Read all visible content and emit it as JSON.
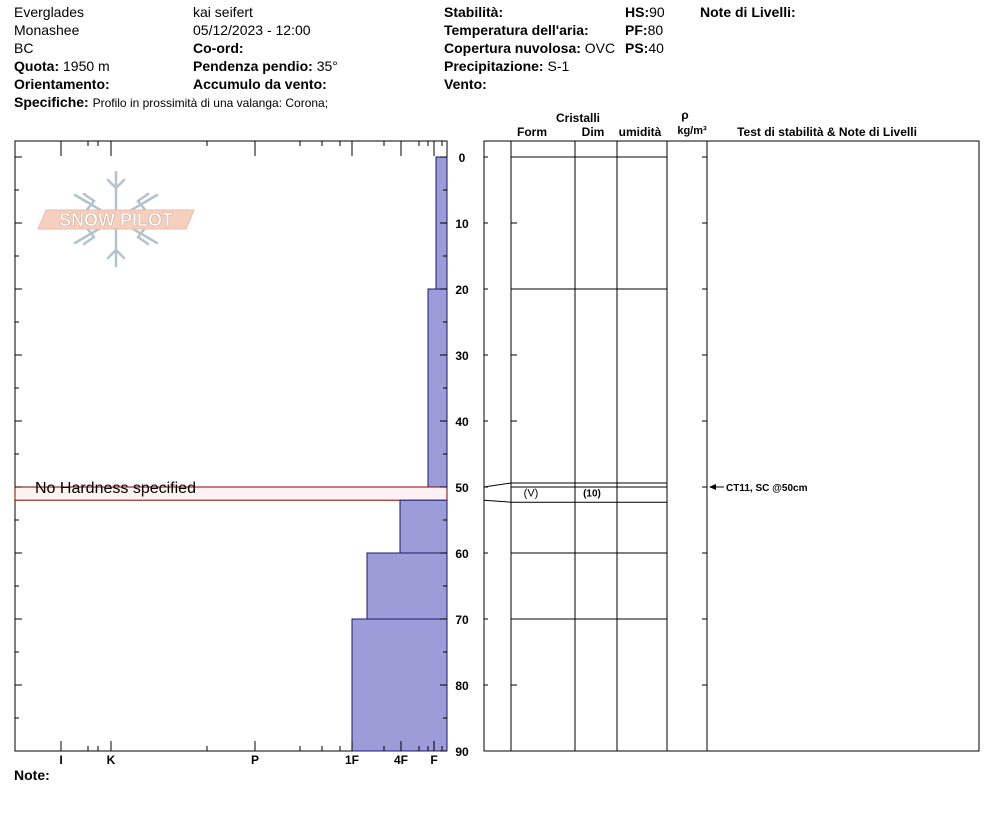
{
  "header": {
    "location": "Everglades",
    "range": "Monashee",
    "region": "BC",
    "observer": "kai seifert",
    "datetime": "05/12/2023 - 12:00",
    "elevation_label": "Quota:",
    "elevation_value": "1950 m",
    "coord_label": "Co-ord:",
    "coord_value": "",
    "aspect_label": "Orientamento:",
    "aspect_value": "",
    "slope_label": "Pendenza pendio:",
    "slope_value": "35°",
    "wind_load_label": "Accumulo da vento:",
    "wind_load_value": "",
    "specifics_label": "Specifiche:",
    "specifics_value": "Profilo in prossimità di una valanga: Corona;",
    "stability_label": "Stabilità:",
    "stability_value": "",
    "air_temp_label": "Temperatura dell'aria:",
    "air_temp_value": "",
    "cloud_label": "Copertura nuvolosa:",
    "cloud_value": "OVC",
    "precip_label": "Precipitazione:",
    "precip_value": "S-1",
    "wind_label": "Vento:",
    "wind_value": "",
    "hs_label": "HS:",
    "hs_value": "90",
    "pf_label": "PF:",
    "pf_value": "80",
    "ps_label": "PS:",
    "ps_value": "40",
    "layer_notes_label": "Note di Livelli:",
    "note_label": "Note:"
  },
  "logo": {
    "text": "SNOW PILOT"
  },
  "table_headers": {
    "crystals": "Cristalli",
    "form": "Form",
    "dim": "Dim",
    "moisture": "umidità",
    "rho": "ρ",
    "density_unit": "kg/m³",
    "stability_notes": "Test di stabilità & Note di Livelli"
  },
  "colors": {
    "hardness_fill": "#9c9cd8",
    "hardness_stroke": "#1a1a6e",
    "no_hardness_fill": "#fff2f2",
    "no_hardness_stroke": "#8b0000"
  },
  "chart_data": {
    "type": "bar",
    "depth_axis": {
      "label": "",
      "range": [
        0,
        90
      ],
      "ticks": [
        0,
        10,
        20,
        30,
        40,
        50,
        60,
        70,
        80,
        90
      ]
    },
    "hardness_axis": {
      "ticks": [
        "I",
        "K",
        "P",
        "1F",
        "4F",
        "F"
      ]
    },
    "layers": [
      {
        "top": 0,
        "bottom": 20,
        "hardness": "F"
      },
      {
        "top": 20,
        "bottom": 50,
        "hardness": "F+"
      },
      {
        "top": 50,
        "bottom": 52,
        "hardness": "",
        "label": "No Hardness specified",
        "crystal_form": "(V)",
        "crystal_size": "(10)"
      },
      {
        "top": 52,
        "bottom": 60,
        "hardness": "4F+"
      },
      {
        "top": 60,
        "bottom": 70,
        "hardness": "4F-"
      },
      {
        "top": 70,
        "bottom": 90,
        "hardness": "1F"
      }
    ],
    "layer_boundaries": [
      0,
      20,
      50,
      60,
      70
    ],
    "stability_tests": [
      {
        "depth": 50,
        "text": "CT11, SC @50cm"
      }
    ]
  }
}
